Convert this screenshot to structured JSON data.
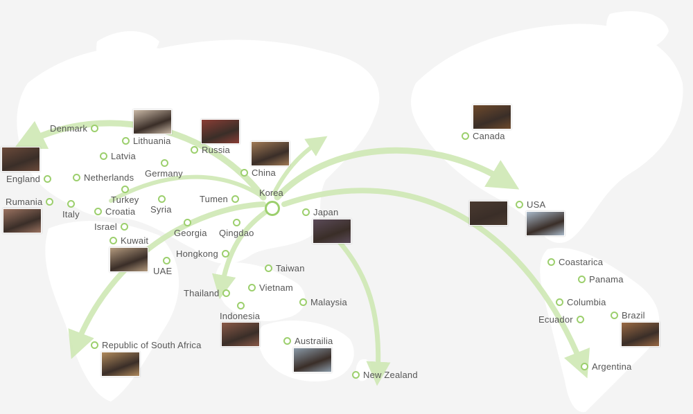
{
  "colors": {
    "background": "#f4f4f4",
    "land": "#ffffff",
    "route": "#cfe8b4",
    "marker": "#9ccf6d",
    "label": "#555555"
  },
  "hub": {
    "name": "Korea"
  },
  "locations": [
    {
      "name": "Denmark"
    },
    {
      "name": "Lithuania"
    },
    {
      "name": "Russia"
    },
    {
      "name": "Latvia"
    },
    {
      "name": "Germany"
    },
    {
      "name": "China"
    },
    {
      "name": "England"
    },
    {
      "name": "Netherlands"
    },
    {
      "name": "Rumania"
    },
    {
      "name": "Italy"
    },
    {
      "name": "Turkey"
    },
    {
      "name": "Croatia"
    },
    {
      "name": "Syria"
    },
    {
      "name": "Tumen"
    },
    {
      "name": "Israel"
    },
    {
      "name": "Georgia"
    },
    {
      "name": "Qingdao"
    },
    {
      "name": "Kuwait"
    },
    {
      "name": "Japan"
    },
    {
      "name": "Hongkong"
    },
    {
      "name": "UAE"
    },
    {
      "name": "Taiwan"
    },
    {
      "name": "Vietnam"
    },
    {
      "name": "Thailand"
    },
    {
      "name": "Malaysia"
    },
    {
      "name": "Indonesia"
    },
    {
      "name": "Republic of South Africa"
    },
    {
      "name": "Austrailia"
    },
    {
      "name": "New Zealand"
    },
    {
      "name": "Canada"
    },
    {
      "name": "USA"
    },
    {
      "name": "Coastarica"
    },
    {
      "name": "Panama"
    },
    {
      "name": "Columbia"
    },
    {
      "name": "Ecuador"
    },
    {
      "name": "Brazil"
    },
    {
      "name": "Argentina"
    }
  ],
  "photos": [
    {
      "label": "Lithuania store photo",
      "tone": "#c9b8a6"
    },
    {
      "label": "Russia store photo",
      "tone": "#8a3d35"
    },
    {
      "label": "China store photo",
      "tone": "#a07a55"
    },
    {
      "label": "England store photo",
      "tone": "#6b4a3a"
    },
    {
      "label": "Rumania store photo",
      "tone": "#9a7260"
    },
    {
      "label": "Kuwait store photo",
      "tone": "#b39a7e"
    },
    {
      "label": "Japan store photo",
      "tone": "#5a4a58"
    },
    {
      "label": "Indonesia store photo",
      "tone": "#8a5a48"
    },
    {
      "label": "South Africa store photo",
      "tone": "#b08a5c"
    },
    {
      "label": "Australia store photo",
      "tone": "#8a9aa8"
    },
    {
      "label": "Canada store photo",
      "tone": "#6e4a2c"
    },
    {
      "label": "USA store photo",
      "tone": "#4a3a30"
    },
    {
      "label": "USA building photo",
      "tone": "#a8b8c8"
    },
    {
      "label": "Brazil store photo",
      "tone": "#9a6a44"
    }
  ]
}
